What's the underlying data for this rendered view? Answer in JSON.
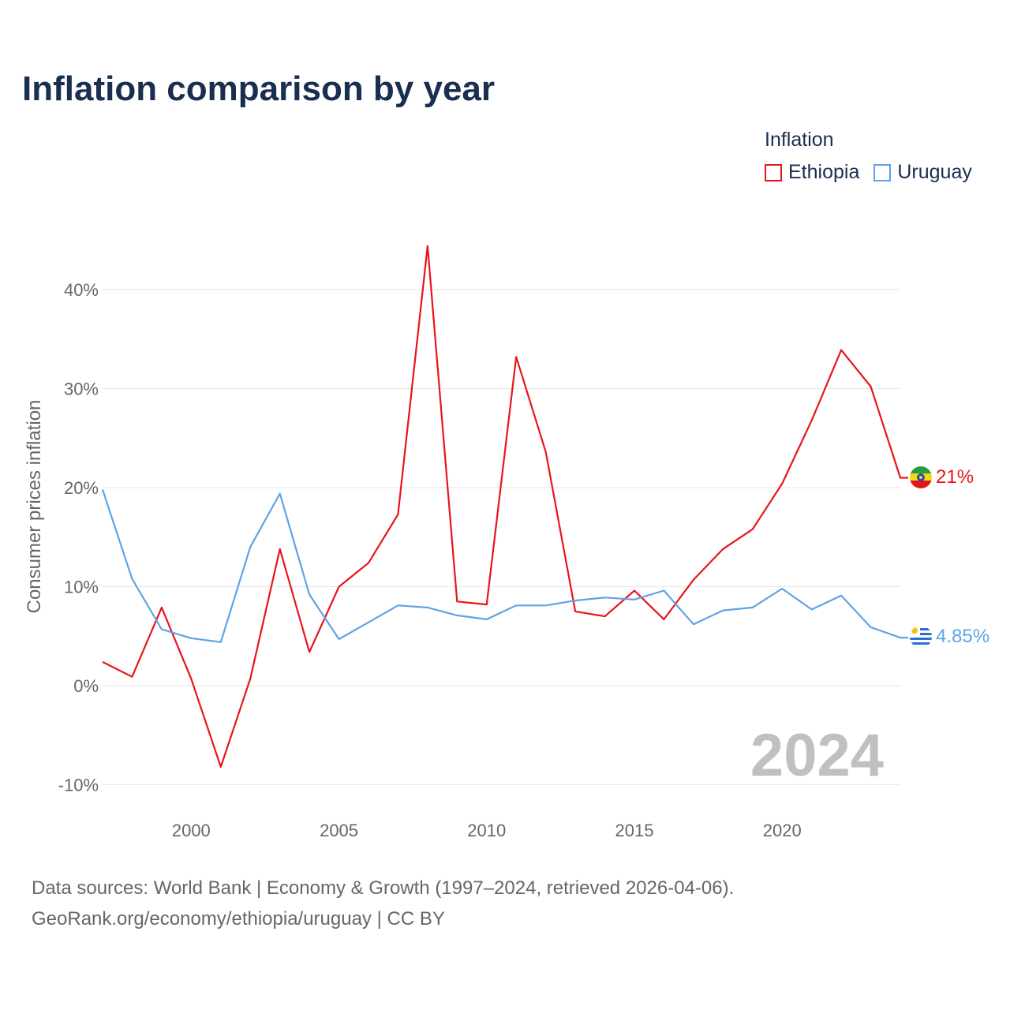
{
  "title": "Inflation comparison by year",
  "legend": {
    "title": "Inflation",
    "items": [
      {
        "label": "Ethiopia",
        "color": "#e8141b"
      },
      {
        "label": "Uruguay",
        "color": "#5ea3e6"
      }
    ]
  },
  "chart_data": {
    "type": "line",
    "title": "Inflation comparison by year",
    "xlabel": "",
    "ylabel": "Consumer prices inflation",
    "xlim": [
      1997,
      2024
    ],
    "ylim": [
      -10,
      45
    ],
    "grid": true,
    "y_ticks": [
      -10,
      0,
      10,
      20,
      30,
      40
    ],
    "y_tick_labels": [
      "-10%",
      "0%",
      "10%",
      "20%",
      "30%",
      "40%"
    ],
    "x_ticks": [
      2000,
      2005,
      2010,
      2015,
      2020
    ],
    "x_tick_labels": [
      "2000",
      "2005",
      "2010",
      "2015",
      "2020"
    ],
    "x": [
      1997,
      1998,
      1999,
      2000,
      2001,
      2002,
      2003,
      2004,
      2005,
      2006,
      2007,
      2008,
      2009,
      2010,
      2011,
      2012,
      2013,
      2014,
      2015,
      2016,
      2017,
      2018,
      2019,
      2020,
      2021,
      2022,
      2023,
      2024
    ],
    "series": [
      {
        "name": "Ethiopia",
        "color": "#e8141b",
        "values": [
          2.4,
          0.9,
          7.9,
          0.7,
          -8.2,
          0.7,
          13.8,
          3.4,
          10.0,
          12.4,
          17.3,
          44.4,
          8.5,
          8.2,
          33.2,
          23.6,
          7.5,
          7.0,
          9.6,
          6.7,
          10.7,
          13.8,
          15.8,
          20.4,
          26.8,
          33.9,
          30.2,
          21.0
        ],
        "end_label": "21%"
      },
      {
        "name": "Uruguay",
        "color": "#5ea3e6",
        "values": [
          19.8,
          10.8,
          5.7,
          4.8,
          4.4,
          14.0,
          19.4,
          9.2,
          4.7,
          6.4,
          8.1,
          7.9,
          7.1,
          6.7,
          8.1,
          8.1,
          8.6,
          8.9,
          8.7,
          9.6,
          6.2,
          7.6,
          7.9,
          9.8,
          7.7,
          9.1,
          5.9,
          4.85
        ],
        "end_label": "4.85%"
      }
    ],
    "annotation": "2024"
  },
  "footer": {
    "line1": "Data sources: World Bank | Economy & Growth (1997–2024, retrieved 2026-04-06).",
    "line2": "GeoRank.org/economy/ethiopia/uruguay | CC BY"
  }
}
